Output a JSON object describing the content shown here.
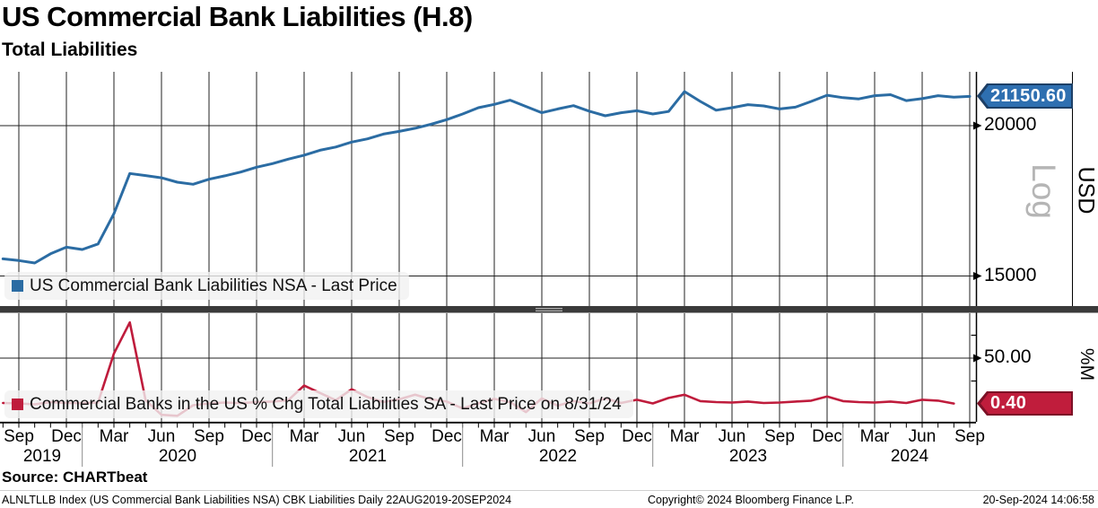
{
  "header": {
    "title": "US Commercial Bank Liabilities (H.8)",
    "subtitle": "Total Liabilities"
  },
  "top_panel": {
    "badge": "21150.60",
    "scale_label": "Log",
    "axis_title": "USD",
    "ticks": [
      {
        "value": 20000,
        "label": "20000"
      },
      {
        "value": 15000,
        "label": "15000"
      }
    ]
  },
  "bottom_panel": {
    "badge": "0.40",
    "axis_title": "%M",
    "ticks": [
      {
        "value": 50,
        "label": "50.00"
      }
    ],
    "minor_ticks": [
      75,
      25
    ]
  },
  "x_axis": {
    "month_labels": [
      "Sep",
      "Dec",
      "Mar",
      "Jun",
      "Sep",
      "Dec",
      "Mar",
      "Jun",
      "Sep",
      "Dec",
      "Mar",
      "Jun",
      "Sep",
      "Dec",
      "Mar",
      "Jun",
      "Sep",
      "Dec",
      "Mar",
      "Jun",
      "Sep"
    ],
    "year_labels": [
      "2019",
      "2020",
      "2021",
      "2022",
      "2023",
      "2024"
    ]
  },
  "footer": {
    "source": "Source: CHARTbeat",
    "description": "ALNLTLLB Index (US Commercial Bank Liabilities NSA) CBK Liabilities  Daily 22AUG2019-20SEP2024",
    "copyright": "Copyright© 2024 Bloomberg Finance L.P.",
    "timestamp": "20-Sep-2024 14:06:58"
  },
  "colors": {
    "blue_line": "#2b6ca3",
    "red_line": "#bf1c3c",
    "badge_blue": "#2e6fb0",
    "badge_blue_border": "#1d3f66",
    "badge_red": "#c01d3c",
    "badge_red_border": "#7c1026",
    "grid": "#222222",
    "axis": "#000000",
    "separator": "#3a3a3a",
    "handle": "#b0b0b0",
    "log_label": "#b5b5b5",
    "legend_bg": "rgba(241,241,241,0.8)"
  },
  "chart_data": [
    {
      "type": "line",
      "panel": "top",
      "name": "US Commercial Bank Liabilities NSA - Last Price",
      "color": "#2b6ca3",
      "width": 3,
      "y_scale": "log",
      "axis": "USD",
      "ylim": [
        14170,
        22170
      ],
      "grid": true,
      "legend_position": "bottom-left",
      "x_start": "2019-08",
      "x_end": "2024-09",
      "frequency": "monthly",
      "last_value": 21150.6,
      "values": [
        15500,
        15450,
        15380,
        15650,
        15850,
        15780,
        15950,
        16900,
        18250,
        18180,
        18100,
        17950,
        17880,
        18050,
        18170,
        18300,
        18470,
        18600,
        18760,
        18900,
        19080,
        19200,
        19380,
        19500,
        19680,
        19780,
        19900,
        20050,
        20230,
        20450,
        20700,
        20830,
        21000,
        20750,
        20500,
        20650,
        20780,
        20560,
        20380,
        20500,
        20580,
        20450,
        20550,
        21350,
        20950,
        20600,
        20700,
        20820,
        20770,
        20650,
        20720,
        20950,
        21200,
        21100,
        21050,
        21180,
        21220,
        20980,
        21060,
        21180,
        21120,
        21150.6
      ]
    },
    {
      "type": "line",
      "panel": "bottom",
      "name": "Commercial Banks in the US % Chg Total Liabilities SA - Last Price on 8/31/24",
      "color": "#bf1c3c",
      "width": 2.6,
      "y_scale": "linear",
      "axis": "%M",
      "ylim": [
        -19.6,
        99
      ],
      "grid": true,
      "legend_position": "bottom-left",
      "x_start": "2019-08",
      "x_end": "2024-08",
      "frequency": "monthly",
      "last_value": 0.4,
      "last_date_label": "8/31/24",
      "values": [
        1.0,
        0.5,
        -0.5,
        2.0,
        1.0,
        0.8,
        1.5,
        55.0,
        89.0,
        4.0,
        -12.0,
        -13.0,
        -1.5,
        0.5,
        1.5,
        0.8,
        2.0,
        2.5,
        4.0,
        20.0,
        12.0,
        4.0,
        16.0,
        7.5,
        2.0,
        5.0,
        10.0,
        5.0,
        2.5,
        -5.0,
        0.5,
        5.5,
        2.0,
        -9.0,
        6.0,
        -2.0,
        3.0,
        0.5,
        6.0,
        1.0,
        4.5,
        0.5,
        6.5,
        10.0,
        3.0,
        2.0,
        1.5,
        2.5,
        1.0,
        1.5,
        2.5,
        3.5,
        8.0,
        3.0,
        2.0,
        1.5,
        2.5,
        1.0,
        4.5,
        3.5,
        0.4
      ]
    }
  ]
}
